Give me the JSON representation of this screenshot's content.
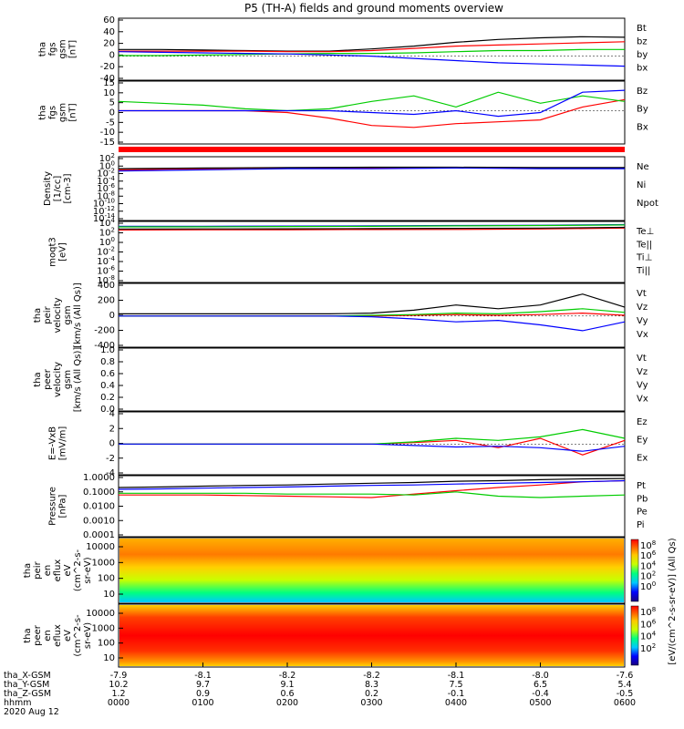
{
  "title": "P5 (TH-A) fields and ground moments overview",
  "date_label": "2020 Aug 12",
  "colorbar_label": "[eV/(cm^2-s-sr-eV)] (All Qs)",
  "colors": {
    "black": "#000000",
    "red": "#ff0000",
    "green": "#00cc00",
    "blue": "#0000ff"
  },
  "chart_data": [
    {
      "type": "line",
      "id": "fgs",
      "ylabel": [
        "tha",
        "fgs",
        "gsm",
        "[nT]"
      ],
      "yticks": [
        "60",
        "40",
        "20",
        "0",
        "-20",
        "-40"
      ],
      "ylim": [
        -40,
        65
      ],
      "series": [
        {
          "name": "Bt",
          "color": "#000000",
          "x": [
            0,
            0.5,
            1,
            1.5,
            2,
            2.5,
            3,
            3.5,
            4,
            4.5,
            5,
            5.5,
            6
          ],
          "values": [
            12,
            12,
            11,
            10,
            9,
            9,
            13,
            18,
            25,
            30,
            33,
            35,
            34
          ]
        },
        {
          "name": "bz",
          "color": "#ff0000",
          "x": [
            0,
            0.5,
            1,
            1.5,
            2,
            2.5,
            3,
            3.5,
            4,
            4.5,
            5,
            5.5,
            6
          ],
          "values": [
            9,
            9,
            9,
            9,
            8,
            8,
            10,
            14,
            18,
            20,
            22,
            24,
            26
          ]
        },
        {
          "name": "by",
          "color": "#00cc00",
          "x": [
            0,
            0.5,
            1,
            1.5,
            2,
            2.5,
            3,
            3.5,
            4,
            4.5,
            5,
            5.5,
            6
          ],
          "values": [
            1,
            1,
            2,
            3,
            4,
            5,
            5,
            6,
            8,
            10,
            10,
            12,
            12
          ]
        },
        {
          "name": "bx",
          "color": "#0000ff",
          "x": [
            0,
            0.5,
            1,
            1.5,
            2,
            2.5,
            3,
            3.5,
            4,
            4.5,
            5,
            5.5,
            6
          ],
          "values": [
            8,
            7,
            6,
            5,
            4,
            2,
            0,
            -4,
            -8,
            -12,
            -14,
            -16,
            -18
          ]
        }
      ]
    },
    {
      "type": "line",
      "id": "fgs2",
      "ylabel": [
        "tha",
        "fgs",
        "gsm",
        "[nT]"
      ],
      "yticks": [
        "15",
        "10",
        "5",
        "0",
        "-5",
        "-10",
        "-15"
      ],
      "ylim": [
        -17,
        15
      ],
      "series": [
        {
          "name": "Bz",
          "color": "#ff0000",
          "x": [
            0,
            0.5,
            1,
            1.5,
            2,
            2.5,
            3,
            3.5,
            4,
            4.5,
            5,
            5.5,
            6
          ],
          "values": [
            0,
            0,
            0,
            0,
            -1,
            -4,
            -8,
            -9,
            -7,
            -6,
            -5,
            2,
            6
          ]
        },
        {
          "name": "By",
          "color": "#00cc00",
          "x": [
            0,
            0.5,
            1,
            1.5,
            2,
            2.5,
            3,
            3.5,
            4,
            4.5,
            5,
            5.5,
            6
          ],
          "values": [
            5,
            4,
            3,
            1,
            0,
            1,
            5,
            8,
            2,
            10,
            4,
            8,
            5
          ]
        },
        {
          "name": "Bx",
          "color": "#0000ff",
          "x": [
            0,
            0.5,
            1,
            1.5,
            2,
            2.5,
            3,
            3.5,
            4,
            4.5,
            5,
            5.5,
            6
          ],
          "values": [
            0,
            0,
            0,
            0,
            0,
            0,
            -1,
            -2,
            0,
            -3,
            -1,
            10,
            11
          ]
        }
      ]
    },
    {
      "type": "line",
      "id": "density",
      "log": true,
      "ylabel": [
        "Density",
        "[1/cc]",
        "[cm-3]"
      ],
      "yticks": [
        "10^2",
        "10^0",
        "10^-2",
        "10^-4",
        "10^-6",
        "10^-8",
        "10^-10",
        "10^-12",
        "10^-14"
      ],
      "ylim": [
        -14,
        2
      ],
      "series": [
        {
          "name": "Ne",
          "color": "#ff0000",
          "x": [
            0,
            1,
            2,
            3,
            4,
            5,
            6
          ],
          "values": [
            0.1,
            0.2,
            0.3,
            0.3,
            0.4,
            0.3,
            0.3
          ]
        },
        {
          "name": "Ni",
          "color": "#000000",
          "x": [
            0,
            1,
            2,
            3,
            4,
            5,
            6
          ],
          "values": [
            0.2,
            0.3,
            0.4,
            0.5,
            0.5,
            0.4,
            0.4
          ]
        },
        {
          "name": "Npot",
          "color": "#0000ff",
          "x": [
            0,
            1,
            2,
            3,
            4,
            5,
            6
          ],
          "values": [
            0.05,
            0.1,
            0.2,
            0.2,
            0.3,
            0.2,
            0.2
          ]
        }
      ]
    },
    {
      "type": "line",
      "id": "temp",
      "log": true,
      "ylabel": [
        "moqt3",
        "[eV]"
      ],
      "yticks": [
        "10^4",
        "10^2",
        "10^0",
        "10^-2",
        "10^-4",
        "10^-6",
        "10^-8"
      ],
      "ylim": [
        -9,
        4
      ],
      "series": [
        {
          "name": "Te⊥",
          "color": "#ff0000",
          "x": [
            0,
            1,
            2,
            3,
            4,
            5,
            6
          ],
          "values": [
            300,
            320,
            350,
            380,
            400,
            500,
            800
          ]
        },
        {
          "name": "Te||",
          "color": "#000000",
          "x": [
            0,
            1,
            2,
            3,
            4,
            5,
            6
          ],
          "values": [
            500,
            520,
            550,
            600,
            700,
            800,
            1200
          ]
        },
        {
          "name": "Ti⊥",
          "color": "#0000ff",
          "x": [
            0,
            1,
            2,
            3,
            4,
            5,
            6
          ],
          "values": [
            2000,
            2100,
            2300,
            2500,
            3000,
            3500,
            5000
          ]
        },
        {
          "name": "Ti||",
          "color": "#00cc00",
          "x": [
            0,
            1,
            2,
            3,
            4,
            5,
            6
          ],
          "values": [
            1500,
            1600,
            1800,
            2000,
            2500,
            3000,
            4000
          ]
        }
      ]
    },
    {
      "type": "line",
      "id": "velocity_peir",
      "ylabel": [
        "tha",
        "peir",
        "velocity",
        "gsm",
        "[km/s (All Qs)]"
      ],
      "yticks": [
        "400",
        "200",
        "0",
        "-200",
        "-400"
      ],
      "ylim": [
        -400,
        420
      ],
      "series": [
        {
          "name": "Vt",
          "color": "#000000",
          "x": [
            0,
            0.5,
            1,
            1.5,
            2,
            2.5,
            3,
            3.5,
            4,
            4.5,
            5,
            5.5,
            6
          ],
          "values": [
            30,
            30,
            30,
            30,
            30,
            30,
            40,
            80,
            150,
            100,
            150,
            300,
            120
          ]
        },
        {
          "name": "Vz",
          "color": "#ff0000",
          "x": [
            0,
            0.5,
            1,
            1.5,
            2,
            2.5,
            3,
            3.5,
            4,
            4.5,
            5,
            5.5,
            6
          ],
          "values": [
            0,
            0,
            0,
            0,
            0,
            0,
            0,
            10,
            20,
            10,
            20,
            40,
            10
          ]
        },
        {
          "name": "Vy",
          "color": "#00cc00",
          "x": [
            0,
            0.5,
            1,
            1.5,
            2,
            2.5,
            3,
            3.5,
            4,
            4.5,
            5,
            5.5,
            6
          ],
          "values": [
            0,
            0,
            0,
            0,
            0,
            0,
            10,
            20,
            40,
            30,
            60,
            100,
            50
          ]
        },
        {
          "name": "Vx",
          "color": "#0000ff",
          "x": [
            0,
            0.5,
            1,
            1.5,
            2,
            2.5,
            3,
            3.5,
            4,
            4.5,
            5,
            5.5,
            6
          ],
          "values": [
            0,
            0,
            0,
            0,
            0,
            0,
            -10,
            -40,
            -80,
            -60,
            -120,
            -200,
            -80
          ]
        }
      ]
    },
    {
      "type": "line",
      "id": "velocity_peer",
      "ylabel": [
        "tha",
        "peer",
        "velocity",
        "gsm",
        "[km/s (All Qs)]"
      ],
      "yticks": [
        "1.0",
        "0.8",
        "0.6",
        "0.4",
        "0.2",
        "0.0"
      ],
      "ylim": [
        0,
        1
      ],
      "series": [
        {
          "name": "Vt",
          "color": "#000000",
          "x": [],
          "values": []
        },
        {
          "name": "Vz",
          "color": "#ff0000",
          "x": [],
          "values": []
        },
        {
          "name": "Vy",
          "color": "#00cc00",
          "x": [],
          "values": []
        },
        {
          "name": "Vx",
          "color": "#0000ff",
          "x": [],
          "values": []
        }
      ]
    },
    {
      "type": "line",
      "id": "efield",
      "ylabel": [
        "E=-VxB",
        "[mV/m]"
      ],
      "yticks": [
        "4",
        "2",
        "0",
        "-2",
        "-4"
      ],
      "ylim": [
        -4,
        4.2
      ],
      "series": [
        {
          "name": "Ez",
          "color": "#ff0000",
          "x": [
            0,
            0.5,
            1,
            1.5,
            2,
            2.5,
            3,
            3.5,
            4,
            4.5,
            5,
            5.5,
            6
          ],
          "values": [
            0,
            0,
            0,
            0,
            0,
            0,
            0,
            0.2,
            0.5,
            -0.5,
            0.8,
            -1.5,
            0.5
          ]
        },
        {
          "name": "Ey",
          "color": "#00cc00",
          "x": [
            0,
            0.5,
            1,
            1.5,
            2,
            2.5,
            3,
            3.5,
            4,
            4.5,
            5,
            5.5,
            6
          ],
          "values": [
            0,
            0,
            0,
            0,
            0,
            0,
            0,
            0.3,
            0.8,
            0.5,
            1,
            2,
            0.8
          ]
        },
        {
          "name": "Ex",
          "color": "#0000ff",
          "x": [
            0,
            0.5,
            1,
            1.5,
            2,
            2.5,
            3,
            3.5,
            4,
            4.5,
            5,
            5.5,
            6
          ],
          "values": [
            0,
            0,
            0,
            0,
            0,
            0,
            0,
            -0.2,
            -0.4,
            -0.3,
            -0.5,
            -1,
            -0.3
          ]
        }
      ]
    },
    {
      "type": "line",
      "id": "pressure",
      "log": true,
      "ylabel": [
        "Pressure",
        "[nPa]"
      ],
      "yticks": [
        "1.0000",
        "0.1000",
        "0.0100",
        "0.0010",
        "0.0001"
      ],
      "ylim": [
        -4,
        0
      ],
      "series": [
        {
          "name": "Pt",
          "color": "#000000",
          "x": [
            0,
            0.5,
            1,
            1.5,
            2,
            2.5,
            3,
            3.5,
            4,
            4.5,
            5,
            5.5,
            6
          ],
          "values": [
            0.2,
            0.22,
            0.25,
            0.28,
            0.3,
            0.35,
            0.4,
            0.45,
            0.55,
            0.6,
            0.7,
            0.8,
            0.85
          ]
        },
        {
          "name": "Pb",
          "color": "#ff0000",
          "x": [
            0,
            0.5,
            1,
            1.5,
            2,
            2.5,
            3,
            3.5,
            4,
            4.5,
            5,
            5.5,
            6
          ],
          "values": [
            0.06,
            0.06,
            0.06,
            0.055,
            0.05,
            0.045,
            0.04,
            0.07,
            0.12,
            0.2,
            0.3,
            0.5,
            0.6
          ]
        },
        {
          "name": "Pe",
          "color": "#00cc00",
          "x": [
            0,
            0.5,
            1,
            1.5,
            2,
            2.5,
            3,
            3.5,
            4,
            4.5,
            5,
            5.5,
            6
          ],
          "values": [
            0.08,
            0.08,
            0.08,
            0.08,
            0.07,
            0.07,
            0.07,
            0.06,
            0.1,
            0.05,
            0.04,
            0.05,
            0.06
          ]
        },
        {
          "name": "Pi",
          "color": "#0000ff",
          "x": [
            0,
            0.5,
            1,
            1.5,
            2,
            2.5,
            3,
            3.5,
            4,
            4.5,
            5,
            5.5,
            6
          ],
          "values": [
            0.15,
            0.16,
            0.18,
            0.2,
            0.22,
            0.25,
            0.28,
            0.3,
            0.35,
            0.4,
            0.45,
            0.5,
            0.6
          ]
        }
      ]
    },
    {
      "type": "heatmap",
      "id": "peir_eflux",
      "ylabel": [
        "tha",
        "peir",
        "en",
        "eflux",
        "eV",
        "(cm^2-s-",
        "sr-eV)"
      ],
      "yticks": [
        "10000",
        "1000",
        "100",
        "10"
      ],
      "colorbar_ticks": [
        "10^8",
        "10^6",
        "10^4",
        "10^2",
        "10^0"
      ]
    },
    {
      "type": "heatmap",
      "id": "peer_eflux",
      "ylabel": [
        "tha",
        "peer",
        "en",
        "eflux",
        "eV",
        "(cm^2-s-",
        "sr-eV)"
      ],
      "yticks": [
        "10000",
        "1000",
        "100",
        "10"
      ],
      "colorbar_ticks": [
        "10^8",
        "10^6",
        "10^4",
        "10^2"
      ]
    }
  ],
  "xaxis": {
    "rows": [
      {
        "label": "tha_X-GSM",
        "values": [
          "-7.9",
          "-8.1",
          "-8.2",
          "-8.2",
          "-8.1",
          "-8.0",
          "-7.6"
        ]
      },
      {
        "label": "tha_Y-GSM",
        "values": [
          "10.2",
          "9.7",
          "9.1",
          "8.3",
          "7.5",
          "6.5",
          "5.4"
        ]
      },
      {
        "label": "tha_Z-GSM",
        "values": [
          "1.2",
          "0.9",
          "0.6",
          "0.2",
          "-0.1",
          "-0.4",
          "-0.5"
        ]
      },
      {
        "label": "hhmm",
        "values": [
          "0000",
          "0100",
          "0200",
          "0300",
          "0400",
          "0500",
          "0600"
        ]
      }
    ]
  }
}
